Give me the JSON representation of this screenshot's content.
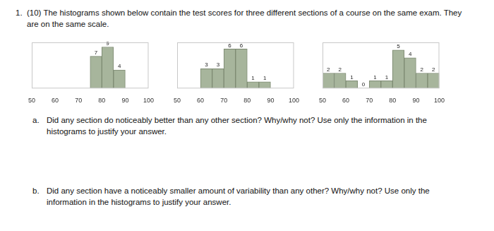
{
  "question": {
    "number": "1.",
    "points": "(10)",
    "text": "The histograms shown below contain the test scores for three different sections of a course on the same exam. They are on the same scale."
  },
  "chart_data": [
    {
      "type": "histogram",
      "bins": [
        75,
        80,
        85,
        90
      ],
      "values": [
        7,
        9,
        4
      ],
      "color": "#a7b59c",
      "xlim": [
        50,
        100
      ],
      "xticks": [
        50,
        60,
        70,
        80,
        90,
        100
      ],
      "ylim": [
        0,
        10
      ],
      "data_labels": true,
      "tick_labels": "x",
      "grid": false
    },
    {
      "type": "histogram",
      "bins": [
        60,
        65,
        70,
        75,
        80,
        85,
        90
      ],
      "values": [
        3,
        3,
        6,
        6,
        1,
        1
      ],
      "color": "#a7b59c",
      "xlim": [
        50,
        100
      ],
      "xticks": [
        50,
        60,
        70,
        80,
        90,
        100
      ],
      "ylim": [
        0,
        7
      ],
      "data_labels": true,
      "tick_labels": "x",
      "grid": false
    },
    {
      "type": "histogram",
      "bins": [
        50,
        55,
        60,
        65,
        70,
        75,
        80,
        85,
        90,
        95,
        100
      ],
      "values": [
        2,
        2,
        1,
        0,
        1,
        1,
        5,
        4,
        2,
        2
      ],
      "color": "#a7b59c",
      "xlim": [
        50,
        100
      ],
      "xticks": [
        50,
        60,
        70,
        80,
        90,
        100
      ],
      "ylim": [
        0,
        6
      ],
      "data_labels": true,
      "tick_labels": "x",
      "grid": false
    }
  ],
  "parts": [
    {
      "label": "a.",
      "text": "Did any section do noticeably better than any other section? Why/why not? Use only the information in the histograms to justify your answer."
    },
    {
      "label": "b.",
      "text": "Did any section have a noticeably smaller amount of variability than any other? Why/why not? Use only the information in the histograms to justify your answer."
    }
  ]
}
